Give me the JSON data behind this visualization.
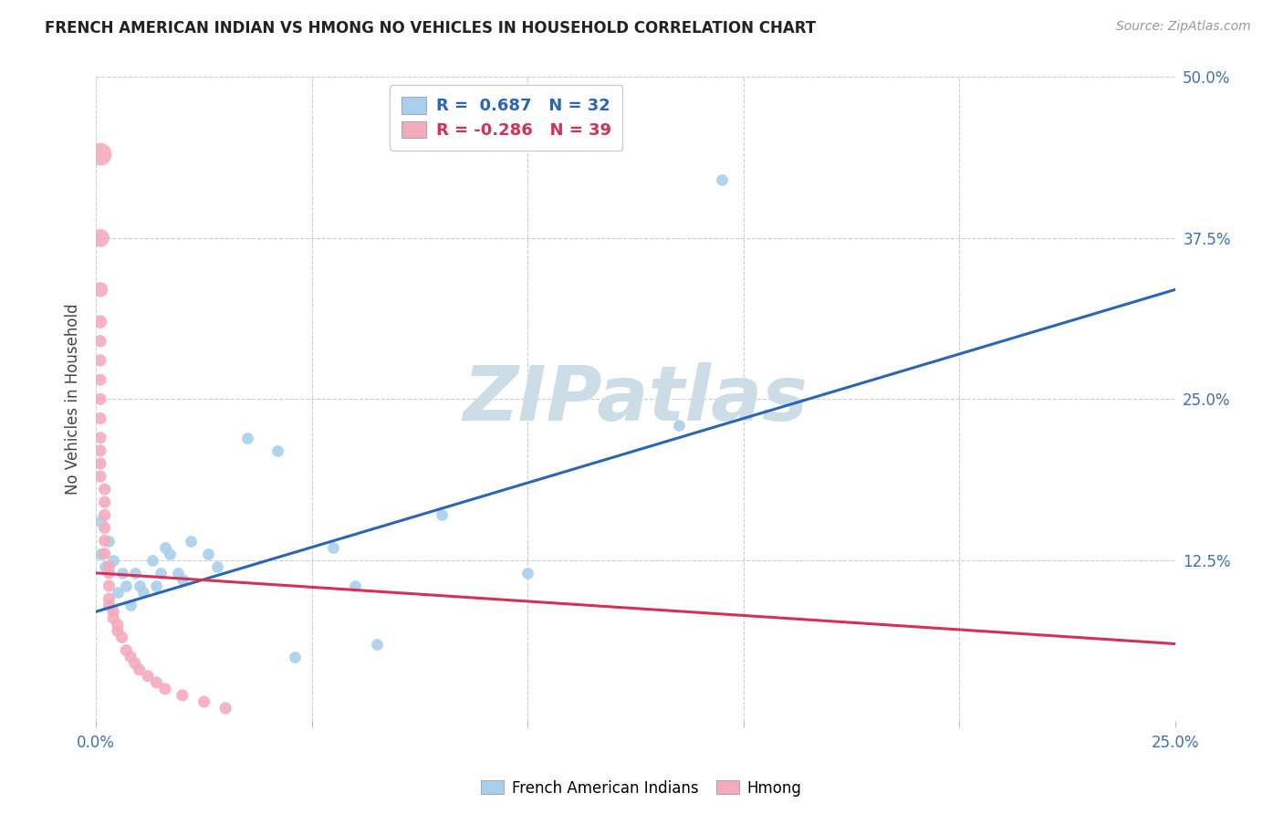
{
  "title": "FRENCH AMERICAN INDIAN VS HMONG NO VEHICLES IN HOUSEHOLD CORRELATION CHART",
  "source": "Source: ZipAtlas.com",
  "ylabel": "No Vehicles in Household",
  "xlim": [
    0,
    0.25
  ],
  "ylim": [
    0,
    0.5
  ],
  "xticks": [
    0.0,
    0.05,
    0.1,
    0.15,
    0.2,
    0.25
  ],
  "xtick_labels": [
    "0.0%",
    "",
    "",
    "",
    "",
    "25.0%"
  ],
  "yticks": [
    0.0,
    0.125,
    0.25,
    0.375,
    0.5
  ],
  "ytick_labels_right": [
    "",
    "12.5%",
    "25.0%",
    "37.5%",
    "50.0%"
  ],
  "blue_R": "0.687",
  "blue_N": "32",
  "pink_R": "-0.286",
  "pink_N": "39",
  "blue_color": "#A8CFED",
  "pink_color": "#F4ABBE",
  "blue_line_color": "#2B65B5",
  "pink_line_color": "#D63055",
  "watermark_color": "#CCDDE8",
  "legend_label_blue": "French American Indians",
  "legend_label_pink": "Hmong",
  "blue_scatter": [
    [
      0.001,
      0.155
    ],
    [
      0.001,
      0.13
    ],
    [
      0.002,
      0.12
    ],
    [
      0.003,
      0.14
    ],
    [
      0.004,
      0.125
    ],
    [
      0.005,
      0.1
    ],
    [
      0.006,
      0.115
    ],
    [
      0.007,
      0.105
    ],
    [
      0.008,
      0.09
    ],
    [
      0.009,
      0.115
    ],
    [
      0.01,
      0.105
    ],
    [
      0.011,
      0.1
    ],
    [
      0.013,
      0.125
    ],
    [
      0.014,
      0.105
    ],
    [
      0.015,
      0.115
    ],
    [
      0.016,
      0.135
    ],
    [
      0.017,
      0.13
    ],
    [
      0.019,
      0.115
    ],
    [
      0.02,
      0.11
    ],
    [
      0.022,
      0.14
    ],
    [
      0.026,
      0.13
    ],
    [
      0.028,
      0.12
    ],
    [
      0.035,
      0.22
    ],
    [
      0.042,
      0.21
    ],
    [
      0.046,
      0.05
    ],
    [
      0.055,
      0.135
    ],
    [
      0.06,
      0.105
    ],
    [
      0.065,
      0.06
    ],
    [
      0.08,
      0.16
    ],
    [
      0.1,
      0.115
    ],
    [
      0.135,
      0.23
    ],
    [
      0.145,
      0.42
    ]
  ],
  "blue_scatter_size": 85,
  "pink_scatter": [
    [
      0.001,
      0.44
    ],
    [
      0.001,
      0.375
    ],
    [
      0.001,
      0.335
    ],
    [
      0.001,
      0.31
    ],
    [
      0.001,
      0.295
    ],
    [
      0.001,
      0.28
    ],
    [
      0.001,
      0.265
    ],
    [
      0.001,
      0.25
    ],
    [
      0.001,
      0.235
    ],
    [
      0.001,
      0.22
    ],
    [
      0.001,
      0.21
    ],
    [
      0.001,
      0.2
    ],
    [
      0.001,
      0.19
    ],
    [
      0.002,
      0.18
    ],
    [
      0.002,
      0.17
    ],
    [
      0.002,
      0.16
    ],
    [
      0.002,
      0.15
    ],
    [
      0.002,
      0.14
    ],
    [
      0.002,
      0.13
    ],
    [
      0.003,
      0.12
    ],
    [
      0.003,
      0.115
    ],
    [
      0.003,
      0.105
    ],
    [
      0.003,
      0.095
    ],
    [
      0.003,
      0.09
    ],
    [
      0.004,
      0.085
    ],
    [
      0.004,
      0.08
    ],
    [
      0.005,
      0.075
    ],
    [
      0.005,
      0.07
    ],
    [
      0.006,
      0.065
    ],
    [
      0.007,
      0.055
    ],
    [
      0.008,
      0.05
    ],
    [
      0.009,
      0.045
    ],
    [
      0.01,
      0.04
    ],
    [
      0.012,
      0.035
    ],
    [
      0.014,
      0.03
    ],
    [
      0.016,
      0.025
    ],
    [
      0.02,
      0.02
    ],
    [
      0.025,
      0.015
    ],
    [
      0.03,
      0.01
    ]
  ],
  "pink_scatter_sizes": [
    320,
    200,
    140,
    110,
    95,
    90,
    90,
    90,
    90,
    90,
    90,
    90,
    90,
    90,
    90,
    90,
    90,
    90,
    90,
    90,
    90,
    90,
    90,
    90,
    90,
    90,
    90,
    90,
    90,
    90,
    90,
    90,
    90,
    90,
    90,
    90,
    90,
    90,
    90
  ]
}
